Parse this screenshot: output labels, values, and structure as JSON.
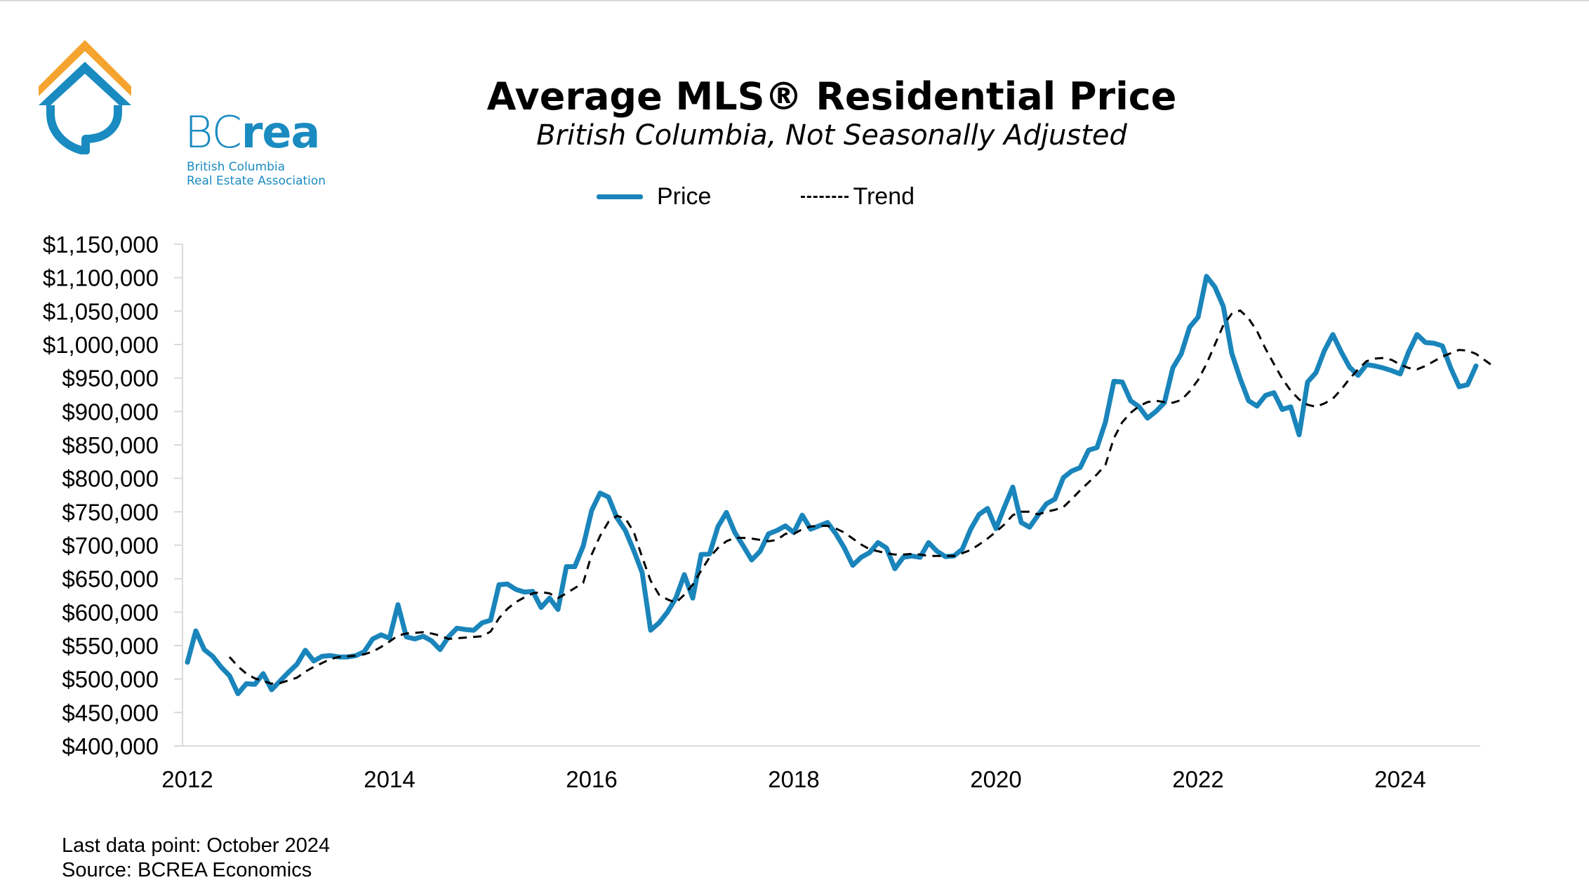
{
  "logo": {
    "wordmark_bc": "BC",
    "wordmark_rea": "rea",
    "subtitle_line1": "British Columbia",
    "subtitle_line2": "Real Estate Association",
    "colors": {
      "blue": "#1A8BC0",
      "orange": "#F6A430"
    }
  },
  "header": {
    "title": "Average MLS® Residential Price",
    "subtitle": "British Columbia, Not Seasonally Adjusted"
  },
  "legend": {
    "price_label": "Price",
    "trend_label": "Trend"
  },
  "footer": {
    "last_data_point": "Last data point: October 2024",
    "source": "Source: BCREA Economics"
  },
  "chart_data": {
    "type": "line",
    "title": "Average MLS® Residential Price",
    "subtitle": "British Columbia, Not Seasonally Adjusted",
    "xlabel": "",
    "ylabel": "",
    "x_start": "2012-01",
    "x_end": "2024-10",
    "frequency": "monthly",
    "ylim": [
      400000,
      1150000
    ],
    "ytick_step": 50000,
    "yticks": [
      "$400,000",
      "$450,000",
      "$500,000",
      "$550,000",
      "$600,000",
      "$650,000",
      "$700,000",
      "$750,000",
      "$800,000",
      "$850,000",
      "$900,000",
      "$950,000",
      "$1,000,000",
      "$1,050,000",
      "$1,100,000",
      "$1,150,000"
    ],
    "xticks": [
      "2012",
      "2014",
      "2016",
      "2018",
      "2020",
      "2022",
      "2024"
    ],
    "grid": false,
    "legend_position": "top-center",
    "series": [
      {
        "name": "Price",
        "color": "#1A85BB",
        "style": "solid",
        "start": "2012-01",
        "values": [
          525000,
          572000,
          544000,
          534000,
          518000,
          505000,
          478000,
          493000,
          492000,
          508000,
          484000,
          497000,
          510000,
          522000,
          543000,
          527000,
          534000,
          535000,
          533000,
          533000,
          535000,
          541000,
          560000,
          566000,
          561000,
          611000,
          563000,
          560000,
          564000,
          557000,
          544000,
          563000,
          576000,
          574000,
          573000,
          584000,
          588000,
          641000,
          642000,
          634000,
          630000,
          631000,
          607000,
          621000,
          604000,
          668000,
          668000,
          699000,
          752000,
          778000,
          772000,
          741000,
          722000,
          692000,
          659000,
          573000,
          584000,
          600000,
          621000,
          656000,
          621000,
          686000,
          687000,
          728000,
          749000,
          719000,
          699000,
          678000,
          691000,
          717000,
          722000,
          729000,
          719000,
          745000,
          724000,
          729000,
          734000,
          717000,
          696000,
          670000,
          682000,
          689000,
          704000,
          696000,
          665000,
          682000,
          684000,
          682000,
          704000,
          691000,
          683000,
          684000,
          694000,
          724000,
          746000,
          755000,
          725000,
          757000,
          787000,
          734000,
          727000,
          745000,
          762000,
          769000,
          801000,
          811000,
          816000,
          842000,
          846000,
          884000,
          945000,
          944000,
          916000,
          907000,
          890000,
          900000,
          913000,
          965000,
          986000,
          1026000,
          1041000,
          1102000,
          1086000,
          1057000,
          987000,
          949000,
          916000,
          908000,
          924000,
          928000,
          903000,
          907000,
          865000,
          944000,
          958000,
          991000,
          1015000,
          989000,
          966000,
          954000,
          970000,
          968000,
          965000,
          961000,
          956000,
          989000,
          1015000,
          1003000,
          1002000,
          998000,
          965000,
          937000,
          940000,
          968000
        ]
      },
      {
        "name": "Trend",
        "color": "#000000",
        "style": "dashed",
        "start": "2012-06",
        "values": [
          533000,
          519000,
          508000,
          501000,
          497000,
          493000,
          494000,
          498000,
          502000,
          511000,
          518000,
          524000,
          530000,
          533000,
          534000,
          535000,
          537000,
          541000,
          548000,
          556000,
          565000,
          568000,
          569000,
          570000,
          568000,
          565000,
          560000,
          561000,
          562000,
          563000,
          564000,
          571000,
          591000,
          605000,
          615000,
          622000,
          628000,
          630000,
          628000,
          621000,
          628000,
          636000,
          644000,
          686000,
          714000,
          735000,
          744000,
          740000,
          720000,
          682000,
          647000,
          626000,
          619000,
          614000,
          626000,
          641000,
          662000,
          682000,
          696000,
          706000,
          711000,
          711000,
          710000,
          708000,
          706000,
          708000,
          717000,
          717000,
          724000,
          728000,
          729000,
          729000,
          725000,
          719000,
          710000,
          701000,
          694000,
          691000,
          688000,
          686000,
          686000,
          687000,
          686000,
          684000,
          684000,
          684000,
          684000,
          688000,
          693000,
          701000,
          710000,
          720000,
          731000,
          745000,
          750000,
          750000,
          746000,
          750000,
          753000,
          757000,
          769000,
          782000,
          794000,
          806000,
          820000,
          860000,
          884000,
          898000,
          908000,
          914000,
          916000,
          914000,
          913000,
          917000,
          930000,
          947000,
          971000,
          1000000,
          1029000,
          1046000,
          1051000,
          1039000,
          1020000,
          994000,
          971000,
          949000,
          931000,
          918000,
          910000,
          907000,
          912000,
          919000,
          933000,
          949000,
          963000,
          975000,
          979000,
          980000,
          977000,
          970000,
          965000,
          963000,
          968000,
          975000,
          982000,
          987000,
          992000,
          991000,
          986000,
          977000,
          968000
        ]
      }
    ]
  }
}
